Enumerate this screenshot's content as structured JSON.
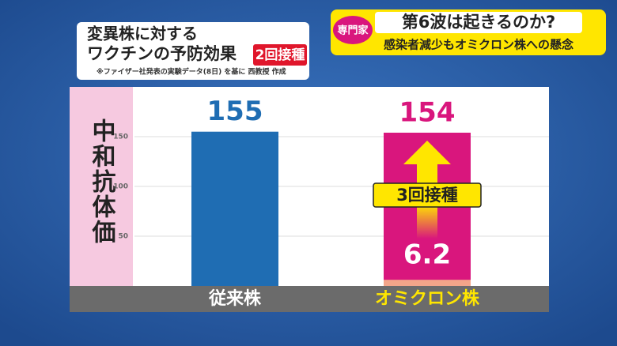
{
  "header": {
    "badge": "専門家",
    "headline": "第6波は起きるのか?",
    "subheadline": "感染者減少もオミクロン株への懸念"
  },
  "chart_data": {
    "type": "bar",
    "title": [
      "変異株に対する",
      "ワクチンの予防効果"
    ],
    "note": "※ファイザー社発表の実験データ(8日) を基に 西教授 作成",
    "y_label": "中和抗体価",
    "categories": [
      "従来株",
      "オミクロン株"
    ],
    "category_colors": [
      "#ffffff",
      "#ffe600"
    ],
    "series": [
      {
        "name": "2回接種",
        "colors": [
          "#1f6db3",
          "#f3a58a"
        ],
        "values": [
          155,
          6.2
        ]
      },
      {
        "name": "3回接種",
        "color": "#d9167d",
        "values": [
          null,
          154
        ]
      }
    ],
    "ylim": [
      0,
      200
    ],
    "yticks": [
      50,
      100,
      150
    ],
    "grid": true
  }
}
